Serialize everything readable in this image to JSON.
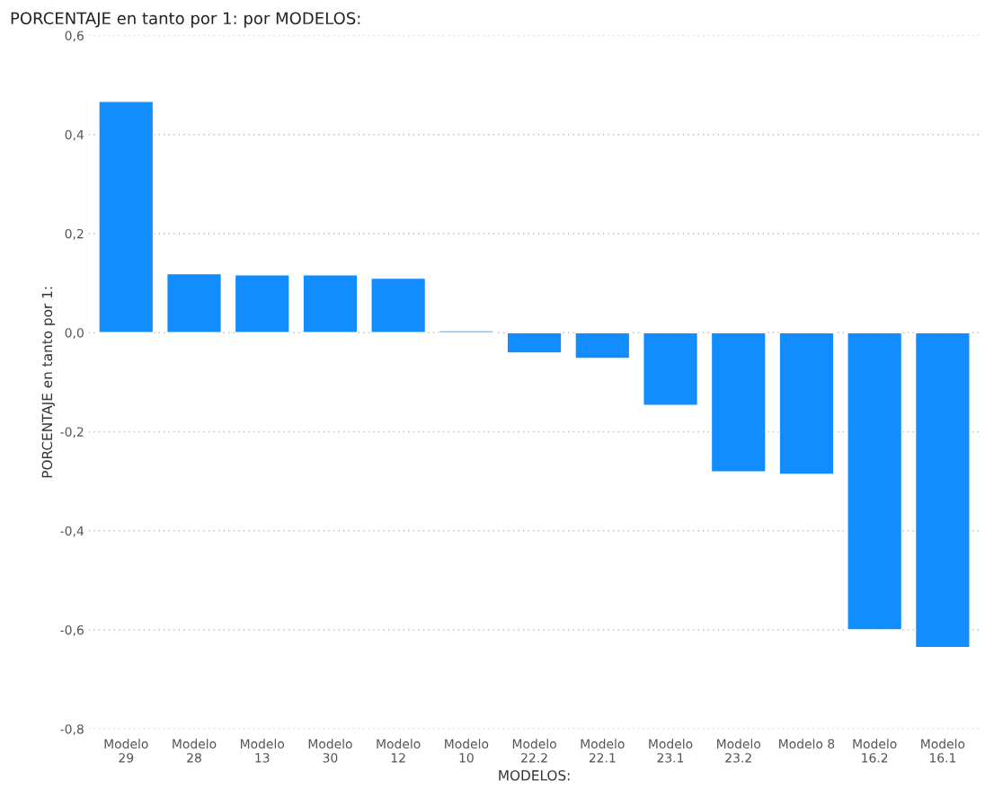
{
  "chart_data": {
    "type": "bar",
    "title": "PORCENTAJE en tanto por 1: por MODELOS:",
    "xlabel": "MODELOS:",
    "ylabel": "PORCENTAJE en tanto por 1:",
    "categories": [
      "Modelo\n29",
      "Modelo\n28",
      "Modelo\n13",
      "Modelo\n30",
      "Modelo\n12",
      "Modelo\n10",
      "Modelo\n22.2",
      "Modelo\n22.1",
      "Modelo\n23.1",
      "Modelo\n23.2",
      "Modelo 8",
      "Modelo\n16.2",
      "Modelo\n16.1"
    ],
    "values": [
      0.467,
      0.119,
      0.117,
      0.117,
      0.11,
      0.004,
      -0.041,
      -0.052,
      -0.147,
      -0.281,
      -0.286,
      -0.6,
      -0.636
    ],
    "color": "#118dff",
    "ylim": [
      -0.8,
      0.6
    ],
    "yticks": [
      {
        "value": -0.8,
        "label": "-0,8"
      },
      {
        "value": -0.6,
        "label": "-0,6"
      },
      {
        "value": -0.4,
        "label": "-0,4"
      },
      {
        "value": -0.2,
        "label": "-0,2"
      },
      {
        "value": 0.0,
        "label": "0,0"
      },
      {
        "value": 0.2,
        "label": "0,2"
      },
      {
        "value": 0.4,
        "label": "0,4"
      },
      {
        "value": 0.6,
        "label": "0,6"
      }
    ],
    "grid": "y"
  }
}
